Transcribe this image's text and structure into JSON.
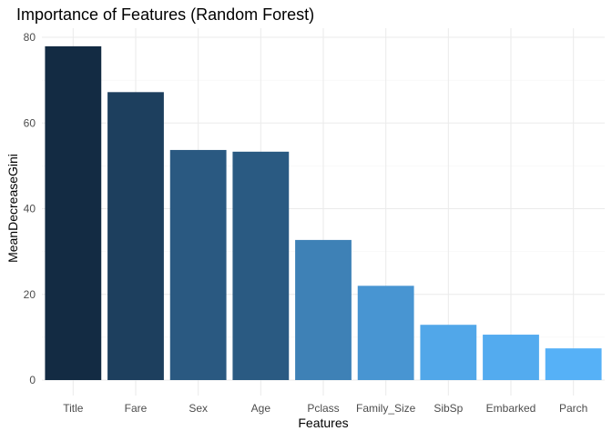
{
  "chart_data": {
    "type": "bar",
    "title": "Importance of Features (Random Forest)",
    "xlabel": "Features",
    "ylabel": "MeanDecreaseGini",
    "categories": [
      "Title",
      "Fare",
      "Sex",
      "Age",
      "Pclass",
      "Family_Size",
      "SibSp",
      "Embarked",
      "Parch"
    ],
    "values": [
      77.9,
      67.2,
      53.7,
      53.3,
      32.7,
      22.0,
      12.9,
      10.6,
      7.4
    ],
    "ylim": [
      0,
      80
    ],
    "yticks": [
      0,
      20,
      40,
      60,
      80
    ],
    "grid": true,
    "legend": "none",
    "color_scale": {
      "low": "#132B43",
      "high": "#56B1F7"
    }
  }
}
